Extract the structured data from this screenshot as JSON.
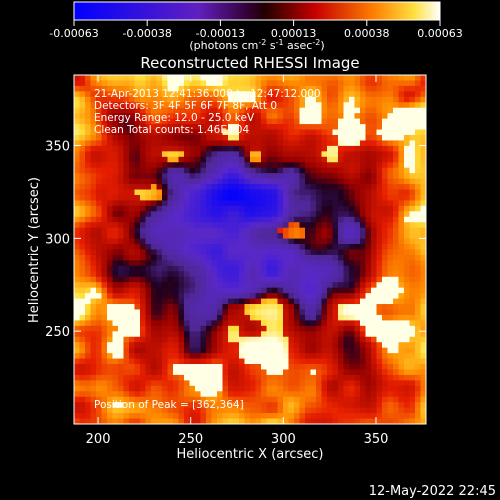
{
  "chart_data": {
    "type": "heatmap",
    "title": "Reconstructed RHESSI Image",
    "xlabel": "Heliocentric X (arcsec)",
    "ylabel": "Heliocentric Y (arcsec)",
    "xlim": [
      187,
      377
    ],
    "ylim": [
      200,
      388
    ],
    "x_ticks": [
      200,
      250,
      300,
      350
    ],
    "y_ticks": [
      250,
      300,
      350
    ],
    "colorbar": {
      "range": [
        -0.00063,
        0.00063
      ],
      "tick_labels": [
        "-0.00063",
        "-0.00038",
        "-0.00013",
        "0.00013",
        "0.00038",
        "0.00063"
      ],
      "units_prefix": "(photons cm",
      "units_exp1": "-2",
      "units_mid": " s",
      "units_exp2": "-1",
      "units_mid2": " asec",
      "units_exp3": "-2",
      "units_suffix": ")"
    },
    "annotations": {
      "time_range": "21-Apr-2013 12:41:36.000 to 12:47:12.000",
      "detectors": "Detectors: 3F 4F 5F 6F 7F 8F, Att 0",
      "energy": "Energy Range: 12.0 - 25.0 keV",
      "clean": "Clean     Total counts: 1.46E+04",
      "peak": "Position of Peak = [362,364]"
    },
    "peak": [
      362,
      364
    ]
  },
  "footer_date": "12-May-2022 22:45"
}
